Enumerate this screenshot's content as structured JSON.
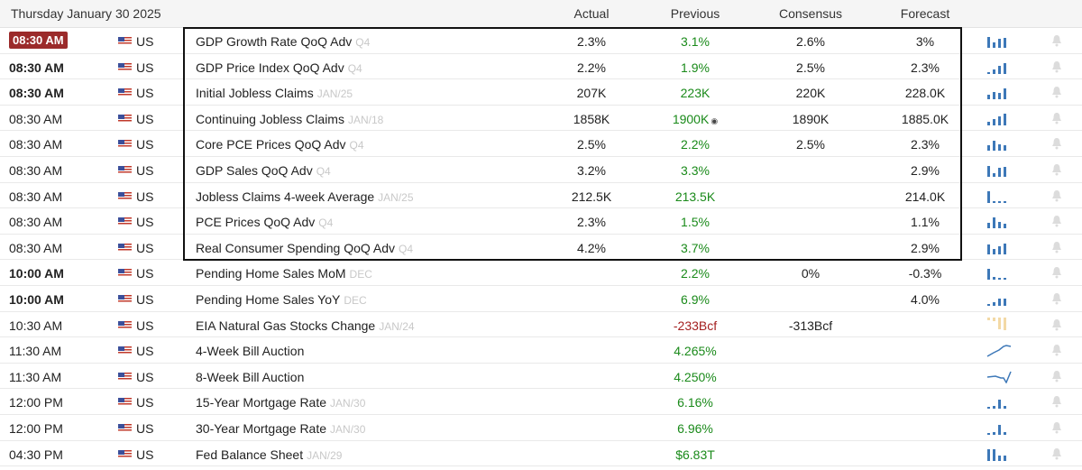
{
  "header": {
    "date": "Thursday January 30 2025",
    "col_actual": "Actual",
    "col_previous": "Previous",
    "col_consensus": "Consensus",
    "col_forecast": "Forecast"
  },
  "colors": {
    "positive": "#1a8a1a",
    "negative": "#a41f1f",
    "highlight_time": "#9b2a2a",
    "spark_bar": "#3d78b8",
    "spark_bar_pale": "#f3d9a6"
  },
  "rows": [
    {
      "time": "08:30 AM",
      "country": "US",
      "event": "GDP Growth Rate QoQ Adv",
      "ref": "Q4",
      "actual": "2.3%",
      "previous": "3.1%",
      "consensus": "2.6%",
      "forecast": "3%",
      "spark_icon": "bar-sparkline-icon"
    },
    {
      "time": "08:30 AM",
      "country": "US",
      "event": "GDP Price Index QoQ Adv",
      "ref": "Q4",
      "actual": "2.2%",
      "previous": "1.9%",
      "consensus": "2.5%",
      "forecast": "2.3%",
      "spark_icon": "bar-sparkline-icon"
    },
    {
      "time": "08:30 AM",
      "country": "US",
      "event": "Initial Jobless Claims",
      "ref": "JAN/25",
      "actual": "207K",
      "previous": "223K",
      "consensus": "220K",
      "forecast": "228.0K",
      "spark_icon": "bar-sparkline-icon"
    },
    {
      "time": "08:30 AM",
      "country": "US",
      "event": "Continuing Jobless Claims",
      "ref": "JAN/18",
      "actual": "1858K",
      "previous": "1900K",
      "consensus": "1890K",
      "forecast": "1885.0K",
      "spark_icon": "bar-sparkline-icon"
    },
    {
      "time": "08:30 AM",
      "country": "US",
      "event": "Core PCE Prices QoQ Adv",
      "ref": "Q4",
      "actual": "2.5%",
      "previous": "2.2%",
      "consensus": "2.5%",
      "forecast": "2.3%",
      "spark_icon": "bar-sparkline-icon"
    },
    {
      "time": "08:30 AM",
      "country": "US",
      "event": "GDP Sales QoQ Adv",
      "ref": "Q4",
      "actual": "3.2%",
      "previous": "3.3%",
      "consensus": "",
      "forecast": "2.9%",
      "spark_icon": "bar-sparkline-icon"
    },
    {
      "time": "08:30 AM",
      "country": "US",
      "event": "Jobless Claims 4-week Average",
      "ref": "JAN/25",
      "actual": "212.5K",
      "previous": "213.5K",
      "consensus": "",
      "forecast": "214.0K",
      "spark_icon": "bar-sparkline-icon"
    },
    {
      "time": "08:30 AM",
      "country": "US",
      "event": "PCE Prices QoQ Adv",
      "ref": "Q4",
      "actual": "2.3%",
      "previous": "1.5%",
      "consensus": "",
      "forecast": "1.1%",
      "spark_icon": "bar-sparkline-icon"
    },
    {
      "time": "08:30 AM",
      "country": "US",
      "event": "Real Consumer Spending QoQ Adv",
      "ref": "Q4",
      "actual": "4.2%",
      "previous": "3.7%",
      "consensus": "",
      "forecast": "2.9%",
      "spark_icon": "bar-sparkline-icon"
    },
    {
      "time": "10:00 AM",
      "country": "US",
      "event": "Pending Home Sales MoM",
      "ref": "DEC",
      "actual": "",
      "previous": "2.2%",
      "consensus": "0%",
      "forecast": "-0.3%",
      "spark_icon": "bar-sparkline-icon"
    },
    {
      "time": "10:00 AM",
      "country": "US",
      "event": "Pending Home Sales YoY",
      "ref": "DEC",
      "actual": "",
      "previous": "6.9%",
      "consensus": "",
      "forecast": "4.0%",
      "spark_icon": "bar-sparkline-icon"
    },
    {
      "time": "10:30 AM",
      "country": "US",
      "event": "EIA Natural Gas Stocks Change",
      "ref": "JAN/24",
      "actual": "",
      "previous": "-233Bcf",
      "consensus": "-313Bcf",
      "forecast": "",
      "spark_icon": "bar-sparkline-icon"
    },
    {
      "time": "11:30 AM",
      "country": "US",
      "event": "4-Week Bill Auction",
      "ref": "",
      "actual": "",
      "previous": "4.265%",
      "consensus": "",
      "forecast": "",
      "spark_icon": "line-sparkline-icon"
    },
    {
      "time": "11:30 AM",
      "country": "US",
      "event": "8-Week Bill Auction",
      "ref": "",
      "actual": "",
      "previous": "4.250%",
      "consensus": "",
      "forecast": "",
      "spark_icon": "line-sparkline-icon"
    },
    {
      "time": "12:00 PM",
      "country": "US",
      "event": "15-Year Mortgage Rate",
      "ref": "JAN/30",
      "actual": "",
      "previous": "6.16%",
      "consensus": "",
      "forecast": "",
      "spark_icon": "bar-sparkline-icon"
    },
    {
      "time": "12:00 PM",
      "country": "US",
      "event": "30-Year Mortgage Rate",
      "ref": "JAN/30",
      "actual": "",
      "previous": "6.96%",
      "consensus": "",
      "forecast": "",
      "spark_icon": "bar-sparkline-icon"
    },
    {
      "time": "04:30 PM",
      "country": "US",
      "event": "Fed Balance Sheet",
      "ref": "JAN/29",
      "actual": "",
      "previous": "$6.83T",
      "consensus": "",
      "forecast": "",
      "spark_icon": "bar-sparkline-icon"
    }
  ]
}
